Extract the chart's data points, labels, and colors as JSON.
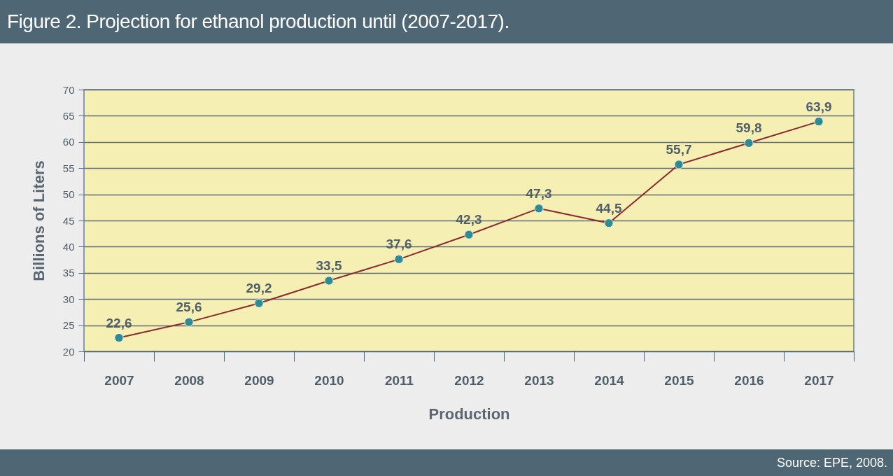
{
  "chart_data": {
    "type": "line",
    "title": "Figure 2. Projection for ethanol production until  (2007-2017).",
    "xlabel": "Production",
    "ylabel": "Billions of Liters",
    "categories": [
      "2007",
      "2008",
      "2009",
      "2010",
      "2011",
      "2012",
      "2013",
      "2014",
      "2015",
      "2016",
      "2017"
    ],
    "series": [
      {
        "color": "#8b2a2e",
        "values": [
          22.6,
          25.6,
          29.2,
          33.5,
          37.6,
          42.3,
          47.3,
          44.5,
          55.7,
          59.8,
          63.9
        ],
        "value_labels": [
          "22,6",
          "25,6",
          "29,2",
          "33,5",
          "37,6",
          "42,3",
          "47,3",
          "44,5",
          "55,7",
          "59,8",
          "63,9"
        ]
      }
    ],
    "ylim": [
      20,
      70
    ],
    "yticks": [
      20,
      25,
      30,
      35,
      40,
      45,
      50,
      55,
      60,
      65,
      70
    ],
    "grid": "y",
    "marker": "circle",
    "annotations": [
      "Source: EPE, 2008."
    ]
  }
}
